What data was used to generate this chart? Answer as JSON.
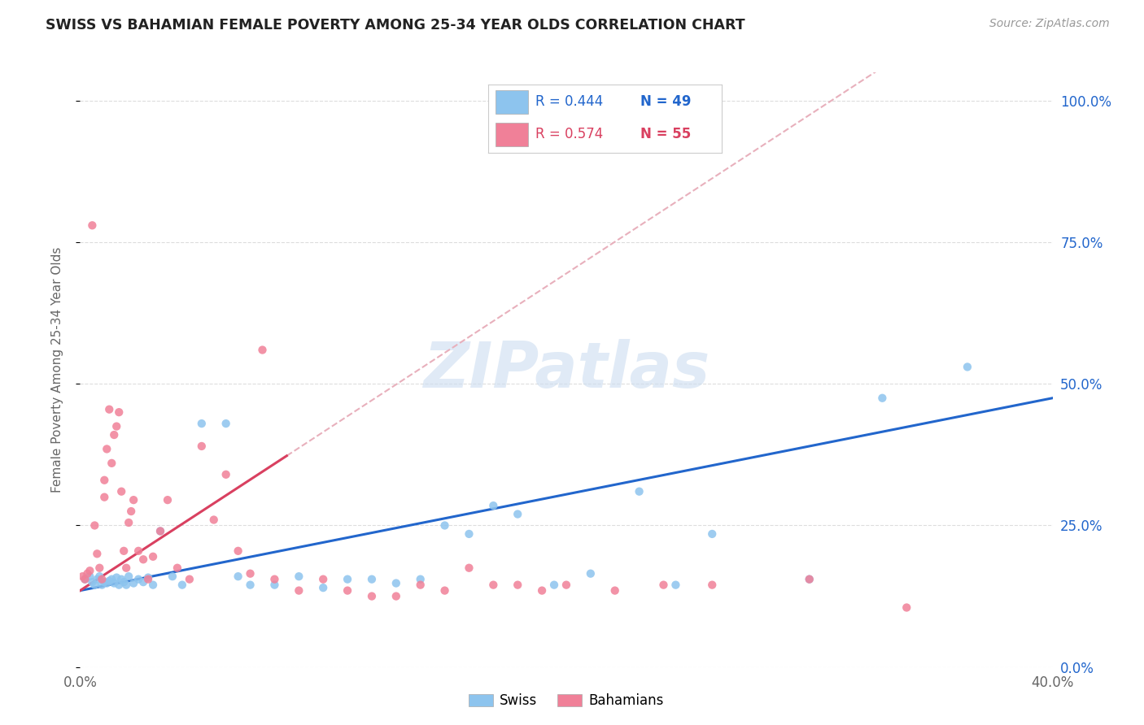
{
  "title": "SWISS VS BAHAMIAN FEMALE POVERTY AMONG 25-34 YEAR OLDS CORRELATION CHART",
  "source": "Source: ZipAtlas.com",
  "ylabel": "Female Poverty Among 25-34 Year Olds",
  "xlim": [
    0.0,
    0.4
  ],
  "ylim": [
    0.0,
    1.05
  ],
  "yticks": [
    0.0,
    0.25,
    0.5,
    0.75,
    1.0
  ],
  "swiss_color": "#8dc4ee",
  "bahamas_color": "#f08098",
  "trendline_swiss_color": "#2266cc",
  "trendline_bahamas_color": "#d94060",
  "trendline_dashed_color": "#e8b0bc",
  "background_color": "#ffffff",
  "watermark_text": "ZIPatlas",
  "legend_R_swiss": "R = 0.444",
  "legend_N_swiss": "N = 49",
  "legend_R_bahamas": "R = 0.574",
  "legend_N_bahamas": "N = 55",
  "swiss_x": [
    0.002,
    0.004,
    0.005,
    0.006,
    0.007,
    0.008,
    0.009,
    0.01,
    0.011,
    0.012,
    0.013,
    0.014,
    0.015,
    0.016,
    0.017,
    0.018,
    0.019,
    0.02,
    0.022,
    0.024,
    0.026,
    0.028,
    0.03,
    0.033,
    0.038,
    0.042,
    0.05,
    0.06,
    0.065,
    0.07,
    0.08,
    0.09,
    0.1,
    0.11,
    0.12,
    0.13,
    0.14,
    0.15,
    0.16,
    0.17,
    0.18,
    0.195,
    0.21,
    0.23,
    0.245,
    0.26,
    0.3,
    0.33,
    0.365
  ],
  "swiss_y": [
    0.155,
    0.16,
    0.15,
    0.145,
    0.155,
    0.16,
    0.145,
    0.15,
    0.148,
    0.152,
    0.155,
    0.148,
    0.158,
    0.145,
    0.155,
    0.15,
    0.145,
    0.16,
    0.148,
    0.155,
    0.15,
    0.158,
    0.145,
    0.24,
    0.16,
    0.145,
    0.43,
    0.43,
    0.16,
    0.145,
    0.145,
    0.16,
    0.14,
    0.155,
    0.155,
    0.148,
    0.155,
    0.25,
    0.235,
    0.285,
    0.27,
    0.145,
    0.165,
    0.31,
    0.145,
    0.235,
    0.155,
    0.475,
    0.53
  ],
  "bahamas_x": [
    0.001,
    0.002,
    0.003,
    0.004,
    0.005,
    0.006,
    0.007,
    0.008,
    0.009,
    0.01,
    0.01,
    0.011,
    0.012,
    0.013,
    0.014,
    0.015,
    0.016,
    0.017,
    0.018,
    0.019,
    0.02,
    0.021,
    0.022,
    0.024,
    0.026,
    0.028,
    0.03,
    0.033,
    0.036,
    0.04,
    0.045,
    0.05,
    0.055,
    0.06,
    0.065,
    0.07,
    0.075,
    0.08,
    0.09,
    0.1,
    0.11,
    0.12,
    0.13,
    0.14,
    0.15,
    0.16,
    0.17,
    0.18,
    0.19,
    0.2,
    0.22,
    0.24,
    0.26,
    0.3,
    0.34
  ],
  "bahamas_y": [
    0.16,
    0.155,
    0.165,
    0.17,
    0.78,
    0.25,
    0.2,
    0.175,
    0.155,
    0.3,
    0.33,
    0.385,
    0.455,
    0.36,
    0.41,
    0.425,
    0.45,
    0.31,
    0.205,
    0.175,
    0.255,
    0.275,
    0.295,
    0.205,
    0.19,
    0.155,
    0.195,
    0.24,
    0.295,
    0.175,
    0.155,
    0.39,
    0.26,
    0.34,
    0.205,
    0.165,
    0.56,
    0.155,
    0.135,
    0.155,
    0.135,
    0.125,
    0.125,
    0.145,
    0.135,
    0.175,
    0.145,
    0.145,
    0.135,
    0.145,
    0.135,
    0.145,
    0.145,
    0.155,
    0.105
  ],
  "trendline_slope_swiss": 0.85,
  "trendline_intercept_swiss": 0.135,
  "trendline_slope_bahamas": 2.8,
  "trendline_intercept_bahamas": 0.135
}
